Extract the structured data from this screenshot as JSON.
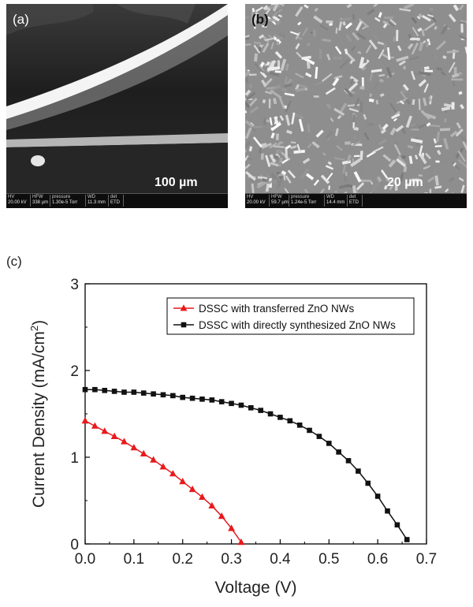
{
  "panels": {
    "a": {
      "label": "(a)",
      "scale_label": "100 µm",
      "info_headers": [
        "HV",
        "HFW",
        "pressure",
        "WD",
        "det"
      ],
      "info_values": [
        "20.00 kV",
        "338 µm",
        "1.30e-5 Torr",
        "11.3 mm",
        "ETD"
      ]
    },
    "b": {
      "label": "(b)",
      "scale_label": "20 µm",
      "info_headers": [
        "HV",
        "HFW",
        "pressure",
        "WD",
        "det"
      ],
      "info_values": [
        "20.00 kV",
        "59.7 µm",
        "1.24e-5 Torr",
        "14.4 mm",
        "ETD"
      ]
    }
  },
  "figure_c_label": "(c)",
  "chart_data": {
    "type": "line",
    "xlabel": "Voltage (V)",
    "ylabel_main": "Current Density (mA/cm",
    "ylabel_sup": "2",
    "ylabel_close": ")",
    "xlim": [
      0.0,
      0.7
    ],
    "ylim": [
      0,
      3
    ],
    "x_ticks": [
      "0.0",
      "0.1",
      "0.2",
      "0.3",
      "0.4",
      "0.5",
      "0.6",
      "0.7"
    ],
    "y_ticks": [
      "0",
      "1",
      "2",
      "3"
    ],
    "legend_position": "top-right",
    "series": [
      {
        "name": "DSSC with transferred ZnO NWs",
        "color": "#e8191c",
        "marker": "triangle",
        "x": [
          0.0,
          0.02,
          0.04,
          0.06,
          0.08,
          0.1,
          0.12,
          0.14,
          0.16,
          0.18,
          0.2,
          0.22,
          0.24,
          0.26,
          0.28,
          0.3,
          0.32
        ],
        "y": [
          1.42,
          1.36,
          1.3,
          1.24,
          1.18,
          1.11,
          1.04,
          0.97,
          0.89,
          0.81,
          0.72,
          0.63,
          0.54,
          0.44,
          0.32,
          0.18,
          0.02
        ]
      },
      {
        "name": "DSSC with directly synthesized ZnO NWs",
        "color": "#111111",
        "marker": "square",
        "x": [
          0.0,
          0.02,
          0.04,
          0.06,
          0.08,
          0.1,
          0.12,
          0.14,
          0.16,
          0.18,
          0.2,
          0.22,
          0.24,
          0.26,
          0.28,
          0.3,
          0.32,
          0.34,
          0.36,
          0.38,
          0.4,
          0.42,
          0.44,
          0.46,
          0.48,
          0.5,
          0.52,
          0.54,
          0.56,
          0.58,
          0.6,
          0.62,
          0.64,
          0.66
        ],
        "y": [
          1.78,
          1.78,
          1.77,
          1.76,
          1.75,
          1.75,
          1.74,
          1.73,
          1.72,
          1.71,
          1.69,
          1.68,
          1.67,
          1.66,
          1.64,
          1.62,
          1.6,
          1.57,
          1.54,
          1.5,
          1.46,
          1.42,
          1.37,
          1.31,
          1.24,
          1.16,
          1.06,
          0.96,
          0.84,
          0.7,
          0.55,
          0.38,
          0.22,
          0.05
        ]
      }
    ]
  }
}
